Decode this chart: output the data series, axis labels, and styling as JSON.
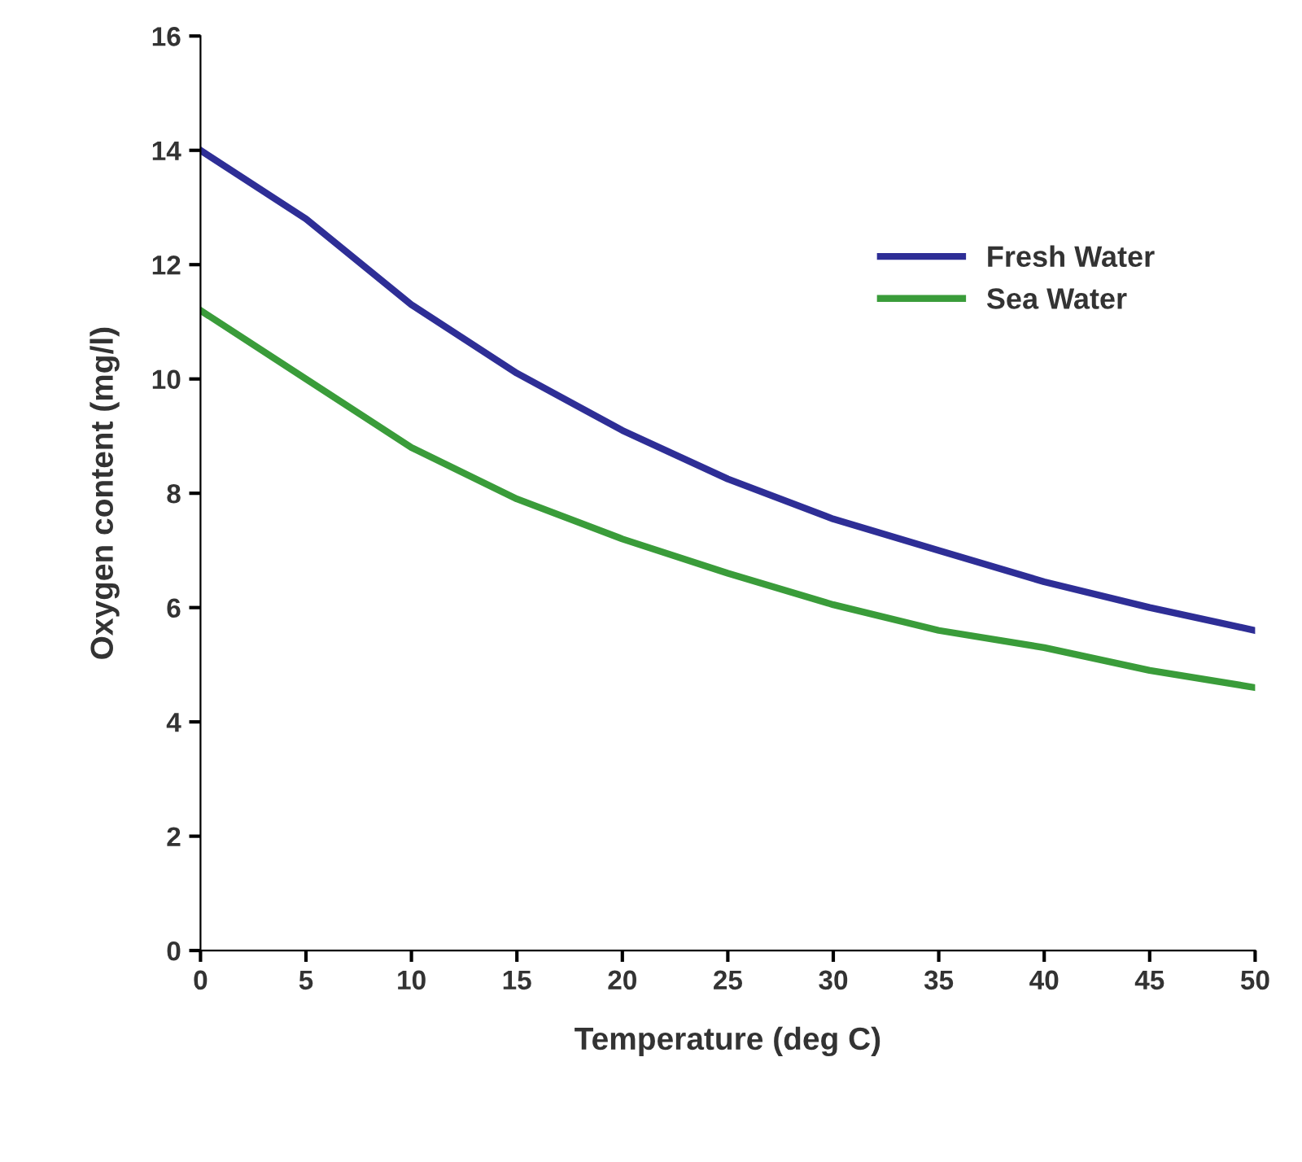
{
  "chart_data": {
    "type": "line",
    "xlabel": "Temperature (deg C)",
    "ylabel": "Oxygen content (mg/l)",
    "x": [
      0,
      5,
      10,
      15,
      20,
      25,
      30,
      35,
      40,
      45,
      50
    ],
    "series": [
      {
        "name": "Fresh Water",
        "color": "#2e2e96",
        "values": [
          14.0,
          12.8,
          11.3,
          10.1,
          9.1,
          8.25,
          7.55,
          7.0,
          6.45,
          6.0,
          5.6
        ]
      },
      {
        "name": "Sea Water",
        "color": "#3a9c3a",
        "values": [
          11.2,
          10.0,
          8.8,
          7.9,
          7.2,
          6.6,
          6.05,
          5.6,
          5.3,
          4.9,
          4.6
        ]
      }
    ],
    "xlim": [
      0,
      50
    ],
    "xticks": [
      0,
      5,
      10,
      15,
      20,
      25,
      30,
      35,
      40,
      45,
      50
    ],
    "ylim": [
      0,
      16
    ],
    "yticks": [
      0,
      2,
      4,
      6,
      8,
      10,
      12,
      14,
      16
    ],
    "grid": false,
    "legend": "top right",
    "marker": "none",
    "line_style": "solid"
  }
}
